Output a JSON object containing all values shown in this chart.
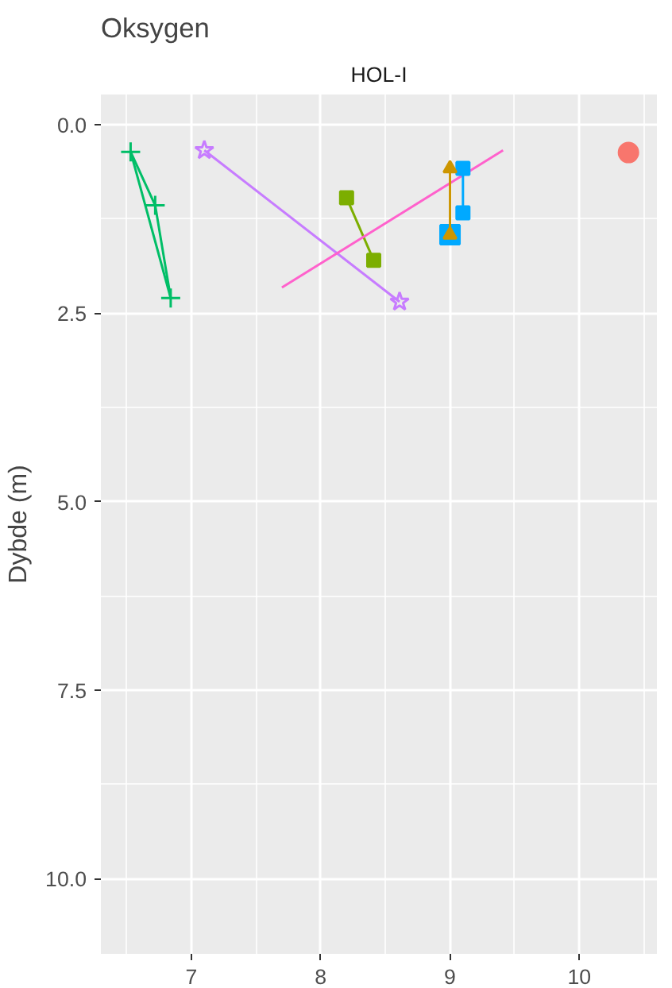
{
  "chart_data": {
    "type": "line",
    "title": "Oksygen",
    "subtitle": "HOL-I",
    "ylabel": "Dybde (m)",
    "xlim": [
      6.3,
      10.6
    ],
    "xticks": [
      7,
      8,
      9,
      10
    ],
    "ylim": [
      11.0,
      -0.4
    ],
    "yticks": [
      {
        "value": 0,
        "label": "0.0"
      },
      {
        "value": 2.5,
        "label": "2.5"
      },
      {
        "value": 5,
        "label": "5.0"
      },
      {
        "value": 7.5,
        "label": "7.5"
      },
      {
        "value": 10,
        "label": "10.0"
      }
    ],
    "grid": true,
    "series": [
      {
        "color": "#00BE67",
        "marker": "cross",
        "x": [
          6.53,
          6.72,
          6.84
        ],
        "values": [
          0.36,
          1.07,
          2.3
        ]
      },
      {
        "color": "#00BE67",
        "marker": "none",
        "x": [
          6.53,
          6.84
        ],
        "values": [
          0.36,
          2.3
        ]
      },
      {
        "color": "#C77CFF",
        "marker": "star",
        "x": [
          7.1,
          8.61
        ],
        "values": [
          0.34,
          2.35
        ]
      },
      {
        "color": "#7CAE00",
        "marker": "square",
        "x": [
          8.2,
          8.41
        ],
        "values": [
          0.97,
          1.8
        ]
      },
      {
        "color": "#FF61CC",
        "marker": "none",
        "x": [
          7.7,
          9.41
        ],
        "values": [
          2.16,
          0.34
        ]
      },
      {
        "color": "#00A9FF",
        "marker": "square",
        "x": [
          9.1,
          9.1
        ],
        "values": [
          0.58,
          1.17
        ]
      },
      {
        "type": "scatter",
        "color": "#00A9FF",
        "marker": "square",
        "x": [
          9.0
        ],
        "values": [
          1.46
        ]
      },
      {
        "color": "#CD9600",
        "marker": "triangle",
        "x": [
          9.0,
          9.0
        ],
        "values": [
          0.58,
          1.46
        ]
      },
      {
        "type": "scatter",
        "color": "#F8766D",
        "marker": "circle",
        "x": [
          10.38
        ],
        "values": [
          0.37
        ]
      }
    ]
  }
}
